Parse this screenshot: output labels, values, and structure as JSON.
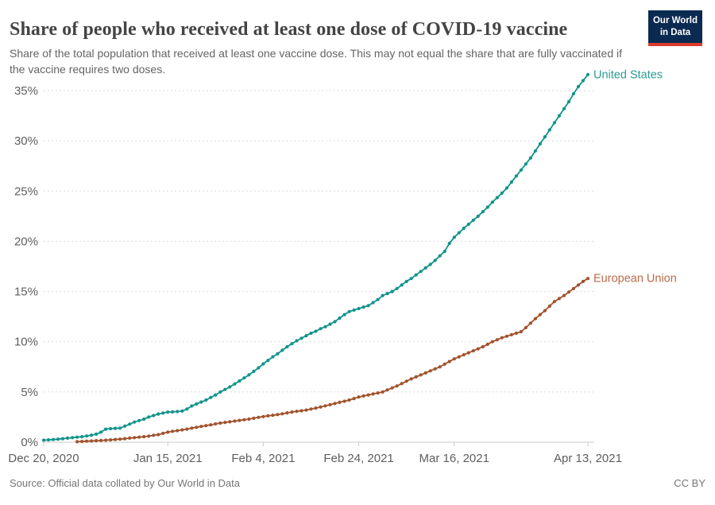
{
  "header": {
    "title": "Share of people who received at least one dose of COVID-19 vaccine",
    "subtitle": "Share of the total population that received at least one vaccine dose. This may not equal the share that are fully vaccinated if the vaccine requires two doses.",
    "logo": {
      "line1": "Our World",
      "line2": "in Data",
      "bg_color": "#0b2a51",
      "accent_color": "#dc3a2d"
    }
  },
  "footer": {
    "source": "Source: Official data collated by Our World in Data",
    "license": "CC BY"
  },
  "chart_data": {
    "type": "line",
    "title": "Share of people who received at least one dose of COVID-19 vaccine",
    "x_axis": "date",
    "x_start_date": "Dec 20, 2020",
    "x_end_date": "Apr 13, 2021",
    "x_total_days": 114,
    "x_tick_labels": [
      "Dec 20, 2020",
      "Jan 15, 2021",
      "Feb 4, 2021",
      "Feb 24, 2021",
      "Mar 16, 2021",
      "Apr 13, 2021"
    ],
    "x_tick_days": [
      0,
      26,
      46,
      66,
      86,
      114
    ],
    "y_ticks": [
      0,
      5,
      10,
      15,
      20,
      25,
      30,
      35
    ],
    "y_tick_suffix": "%",
    "ylim": [
      0,
      37
    ],
    "grid": "horizontal-dashed",
    "legend_position": "line-end-labels",
    "marker_style": "daily-dots",
    "series": [
      {
        "name": "United States",
        "color": "#11948a",
        "label_color": "#2b9c93",
        "start_day": 0,
        "end_value": 36.6,
        "values": [
          0.2,
          0.23,
          0.26,
          0.3,
          0.35,
          0.4,
          0.45,
          0.5,
          0.55,
          0.62,
          0.7,
          0.8,
          1.0,
          1.3,
          1.35,
          1.38,
          1.4,
          1.6,
          1.8,
          2.0,
          2.15,
          2.3,
          2.5,
          2.65,
          2.8,
          2.9,
          3.0,
          3.02,
          3.05,
          3.1,
          3.3,
          3.6,
          3.8,
          4.0,
          4.2,
          4.45,
          4.7,
          5.0,
          5.25,
          5.5,
          5.8,
          6.1,
          6.4,
          6.7,
          7.05,
          7.4,
          7.8,
          8.15,
          8.5,
          8.8,
          9.15,
          9.5,
          9.8,
          10.1,
          10.35,
          10.6,
          10.85,
          11.05,
          11.3,
          11.5,
          11.75,
          12.0,
          12.35,
          12.7,
          13.0,
          13.15,
          13.3,
          13.45,
          13.6,
          13.9,
          14.2,
          14.6,
          14.8,
          15.0,
          15.3,
          15.65,
          16.0,
          16.3,
          16.65,
          17.0,
          17.35,
          17.7,
          18.1,
          18.55,
          19.0,
          19.8,
          20.4,
          20.85,
          21.3,
          21.7,
          22.1,
          22.5,
          22.95,
          23.4,
          23.9,
          24.35,
          24.8,
          25.3,
          25.9,
          26.5,
          27.1,
          27.7,
          28.3,
          29.0,
          29.7,
          30.4,
          31.1,
          31.8,
          32.5,
          33.2,
          33.9,
          34.7,
          35.4,
          36.0,
          36.6
        ]
      },
      {
        "name": "European Union",
        "color": "#a1522c",
        "label_color": "#b96a48",
        "start_day": 7,
        "end_value": 16.3,
        "values": [
          0.05,
          0.07,
          0.1,
          0.12,
          0.15,
          0.17,
          0.2,
          0.23,
          0.27,
          0.3,
          0.35,
          0.4,
          0.45,
          0.5,
          0.55,
          0.6,
          0.68,
          0.75,
          0.88,
          1.0,
          1.08,
          1.15,
          1.23,
          1.3,
          1.4,
          1.48,
          1.57,
          1.65,
          1.73,
          1.82,
          1.9,
          1.97,
          2.03,
          2.1,
          2.17,
          2.23,
          2.3,
          2.38,
          2.47,
          2.55,
          2.62,
          2.68,
          2.75,
          2.83,
          2.92,
          3.0,
          3.07,
          3.13,
          3.2,
          3.3,
          3.4,
          3.5,
          3.62,
          3.73,
          3.85,
          3.97,
          4.08,
          4.2,
          4.35,
          4.5,
          4.6,
          4.7,
          4.8,
          4.9,
          5.0,
          5.2,
          5.4,
          5.6,
          5.83,
          6.07,
          6.3,
          6.5,
          6.7,
          6.9,
          7.1,
          7.3,
          7.5,
          7.77,
          8.03,
          8.3,
          8.5,
          8.7,
          8.9,
          9.1,
          9.3,
          9.5,
          9.75,
          10.0,
          10.2,
          10.4,
          10.55,
          10.7,
          10.85,
          11.0,
          11.4,
          11.85,
          12.3,
          12.7,
          13.1,
          13.55,
          14.0,
          14.3,
          14.6,
          14.95,
          15.3,
          15.65,
          16.0,
          16.3
        ]
      }
    ]
  }
}
